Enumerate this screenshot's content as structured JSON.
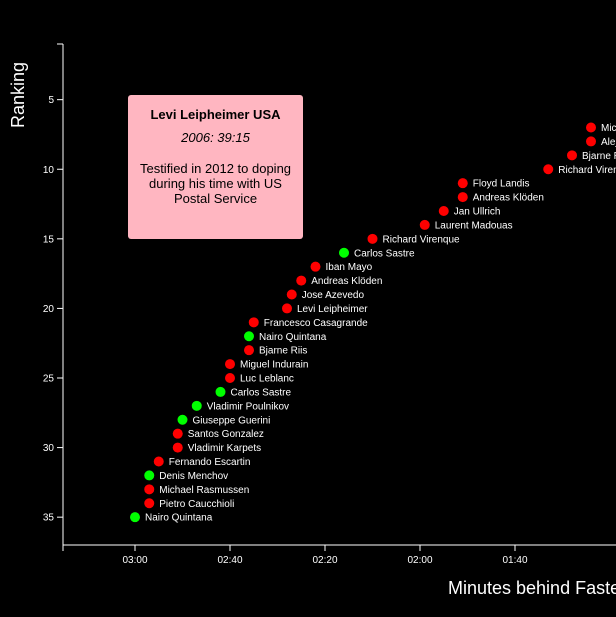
{
  "chart_data": {
    "type": "scatter",
    "xlabel": "Minutes behind Fastest Time",
    "ylabel": "Ranking",
    "x_ticks": [
      "03:00",
      "02:40",
      "02:20",
      "02:00",
      "01:40"
    ],
    "y_ticks": [
      5,
      10,
      15,
      20,
      25,
      30,
      35
    ],
    "y_range": [
      1,
      37
    ],
    "colors": {
      "doping": "#ff0000",
      "clean": "#00ff00"
    },
    "points": [
      {
        "rank": 7,
        "behind": "01:24",
        "name": "Michael Rasmussen",
        "doping": true
      },
      {
        "rank": 8,
        "behind": "01:24",
        "name": "Alejandro Valverde",
        "doping": true
      },
      {
        "rank": 9,
        "behind": "01:28",
        "name": "Bjarne Riis",
        "doping": true
      },
      {
        "rank": 10,
        "behind": "01:33",
        "name": "Richard Virenque",
        "doping": true
      },
      {
        "rank": 11,
        "behind": "01:51",
        "name": "Floyd Landis",
        "doping": true
      },
      {
        "rank": 12,
        "behind": "01:51",
        "name": "Andreas Klöden",
        "doping": true
      },
      {
        "rank": 13,
        "behind": "01:55",
        "name": "Jan Ullrich",
        "doping": true
      },
      {
        "rank": 14,
        "behind": "01:59",
        "name": "Laurent Madouas",
        "doping": true
      },
      {
        "rank": 15,
        "behind": "02:10",
        "name": "Richard Virenque",
        "doping": true
      },
      {
        "rank": 16,
        "behind": "02:16",
        "name": "Carlos Sastre",
        "doping": false
      },
      {
        "rank": 17,
        "behind": "02:22",
        "name": "Iban Mayo",
        "doping": true
      },
      {
        "rank": 18,
        "behind": "02:25",
        "name": "Andreas Klöden",
        "doping": true
      },
      {
        "rank": 19,
        "behind": "02:27",
        "name": "Jose Azevedo",
        "doping": true
      },
      {
        "rank": 20,
        "behind": "02:28",
        "name": "Levi Leipheimer",
        "doping": true
      },
      {
        "rank": 21,
        "behind": "02:35",
        "name": "Francesco Casagrande",
        "doping": true
      },
      {
        "rank": 22,
        "behind": "02:36",
        "name": "Nairo Quintana",
        "doping": false
      },
      {
        "rank": 23,
        "behind": "02:36",
        "name": "Bjarne Riis",
        "doping": true
      },
      {
        "rank": 24,
        "behind": "02:40",
        "name": "Miguel Indurain",
        "doping": true
      },
      {
        "rank": 25,
        "behind": "02:40",
        "name": "Luc Leblanc",
        "doping": true
      },
      {
        "rank": 26,
        "behind": "02:42",
        "name": "Carlos Sastre",
        "doping": false
      },
      {
        "rank": 27,
        "behind": "02:47",
        "name": "Vladimir Poulnikov",
        "doping": false
      },
      {
        "rank": 28,
        "behind": "02:50",
        "name": "Giuseppe Guerini",
        "doping": false
      },
      {
        "rank": 29,
        "behind": "02:51",
        "name": "Santos Gonzalez",
        "doping": true
      },
      {
        "rank": 30,
        "behind": "02:51",
        "name": "Vladimir Karpets",
        "doping": true
      },
      {
        "rank": 31,
        "behind": "02:55",
        "name": "Fernando Escartin",
        "doping": true
      },
      {
        "rank": 32,
        "behind": "02:57",
        "name": "Denis Menchov",
        "doping": false
      },
      {
        "rank": 33,
        "behind": "02:57",
        "name": "Michael Rasmussen",
        "doping": true
      },
      {
        "rank": 34,
        "behind": "02:57",
        "name": "Pietro Caucchioli",
        "doping": true
      },
      {
        "rank": 35,
        "behind": "03:00",
        "name": "Nairo Quintana",
        "doping": false
      }
    ]
  },
  "tooltip": {
    "name": "Levi Leipheimer USA",
    "time": "2006: 39:15",
    "note": "Testified in 2012 to doping during his time with US Postal Service"
  }
}
